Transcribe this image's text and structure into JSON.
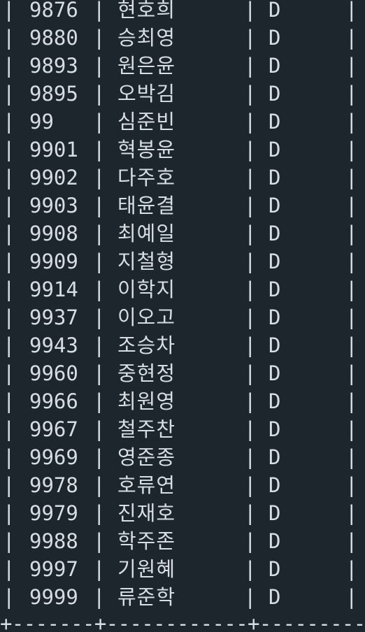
{
  "table": {
    "rows": [
      {
        "id": "9876",
        "name": "현호희",
        "grade": "D"
      },
      {
        "id": "9880",
        "name": "승최영",
        "grade": "D"
      },
      {
        "id": "9893",
        "name": "원은윤",
        "grade": "D"
      },
      {
        "id": "9895",
        "name": "오박김",
        "grade": "D"
      },
      {
        "id": "99",
        "name": "심준빈",
        "grade": "D"
      },
      {
        "id": "9901",
        "name": "혁봉윤",
        "grade": "D"
      },
      {
        "id": "9902",
        "name": "다주호",
        "grade": "D"
      },
      {
        "id": "9903",
        "name": "태윤결",
        "grade": "D"
      },
      {
        "id": "9908",
        "name": "최예일",
        "grade": "D"
      },
      {
        "id": "9909",
        "name": "지철형",
        "grade": "D"
      },
      {
        "id": "9914",
        "name": "이학지",
        "grade": "D"
      },
      {
        "id": "9937",
        "name": "이오고",
        "grade": "D"
      },
      {
        "id": "9943",
        "name": "조승차",
        "grade": "D"
      },
      {
        "id": "9960",
        "name": "중현정",
        "grade": "D"
      },
      {
        "id": "9966",
        "name": "최원영",
        "grade": "D"
      },
      {
        "id": "9967",
        "name": "철주찬",
        "grade": "D"
      },
      {
        "id": "9969",
        "name": "영준종",
        "grade": "D"
      },
      {
        "id": "9978",
        "name": "호류연",
        "grade": "D"
      },
      {
        "id": "9979",
        "name": "진재호",
        "grade": "D"
      },
      {
        "id": "9988",
        "name": "학주존",
        "grade": "D"
      },
      {
        "id": "9997",
        "name": "기원혜",
        "grade": "D"
      },
      {
        "id": "9999",
        "name": "류준학",
        "grade": "D"
      }
    ],
    "separator": "|",
    "bottom_border": "+-------+------------+---------+"
  }
}
